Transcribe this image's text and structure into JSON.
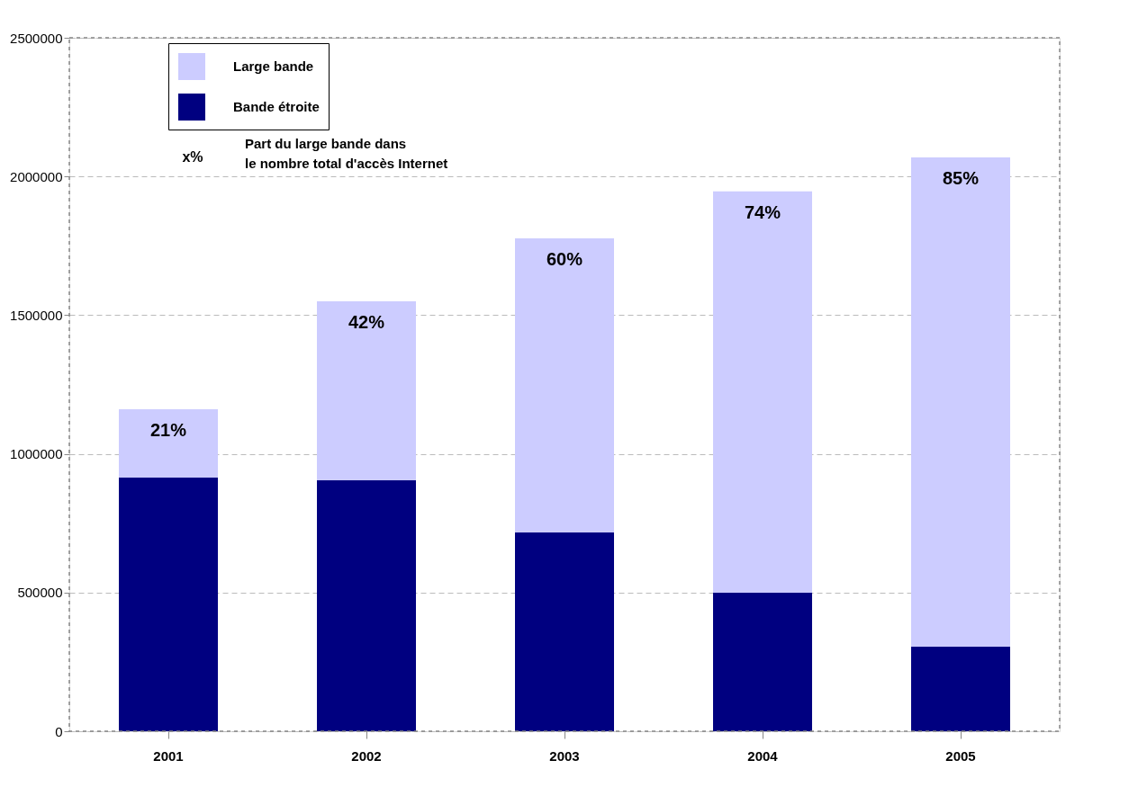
{
  "chart_data": {
    "type": "bar",
    "stacked": true,
    "categories": [
      "2001",
      "2002",
      "2003",
      "2004",
      "2005"
    ],
    "series": [
      {
        "name": "Bande étroite",
        "color": "#000080",
        "values": [
          914000,
          905000,
          717000,
          499000,
          305000
        ]
      },
      {
        "name": "Large bande",
        "color": "#ccccff",
        "values": [
          247000,
          645000,
          1060000,
          1447000,
          1764000
        ]
      }
    ],
    "ylim": [
      0,
      2500000
    ],
    "yticks": [
      0,
      500000,
      1000000,
      1500000,
      2000000,
      2500000
    ],
    "grid": "y",
    "legend": "top left",
    "annotations": [
      {
        "text": "21%",
        "x": "2001",
        "y": 1161000
      },
      {
        "text": "42%",
        "x": "2002",
        "y": 1550000
      },
      {
        "text": "60%",
        "x": "2003",
        "y": 1777000
      },
      {
        "text": "74%",
        "x": "2004",
        "y": 1946000
      },
      {
        "text": "85%",
        "x": "2005",
        "y": 2069000
      },
      "x%",
      "Part du large bande dans le nombre total d'accès Internet"
    ]
  }
}
